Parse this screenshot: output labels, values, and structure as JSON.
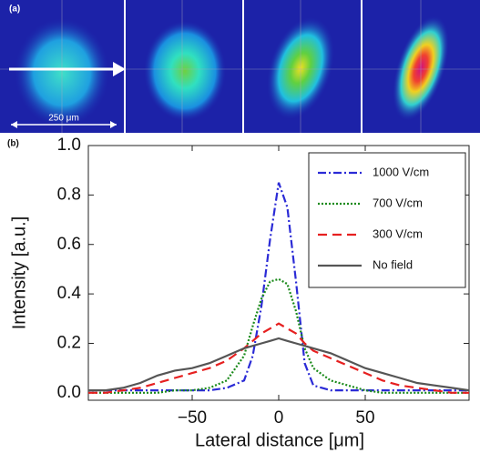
{
  "panels": {
    "panel_a": "(a)",
    "panel_b": "(b)",
    "scale_bar": "250 μm"
  },
  "chart_data": {
    "type": "line",
    "xlabel": "Lateral distance [μm]",
    "ylabel": "Intensity  [a.u.]",
    "xlim": [
      -110,
      110
    ],
    "ylim": [
      -0.03,
      1.0
    ],
    "xticks": [
      {
        "value": -50,
        "label": "−50"
      },
      0,
      50
    ],
    "yticks": [
      {
        "value": 0,
        "label": "0.0"
      },
      0.2,
      0.4,
      0.6,
      0.8,
      {
        "value": 1,
        "label": "1.0"
      }
    ],
    "legend_position": "upper right",
    "x": [
      -110,
      -100,
      -90,
      -80,
      -70,
      -60,
      -50,
      -40,
      -30,
      -20,
      -15,
      -10,
      -5,
      0,
      5,
      10,
      15,
      20,
      30,
      40,
      50,
      60,
      70,
      80,
      90,
      100,
      110
    ],
    "series": [
      {
        "name": "1000 V/cm",
        "color": "#2b2bd6",
        "dash": "9,3,2,3",
        "values": [
          0.01,
          0.01,
          0.01,
          0.01,
          0.01,
          0.01,
          0.01,
          0.01,
          0.02,
          0.05,
          0.15,
          0.35,
          0.62,
          0.85,
          0.75,
          0.45,
          0.12,
          0.03,
          0.01,
          0.01,
          0.01,
          0.01,
          0.01,
          0.01,
          0.01,
          0.01,
          0.01
        ]
      },
      {
        "name": "700 V/cm",
        "color": "#1a8a1a",
        "dash": "2,2",
        "values": [
          0,
          0,
          0,
          0,
          0,
          0.01,
          0.01,
          0.02,
          0.05,
          0.15,
          0.27,
          0.38,
          0.45,
          0.46,
          0.44,
          0.33,
          0.18,
          0.1,
          0.05,
          0.03,
          0.01,
          0,
          0,
          0,
          0,
          0,
          0
        ]
      },
      {
        "name": "300 V/cm",
        "color": "#e62020",
        "dash": "10,6",
        "values": [
          0,
          0,
          0.01,
          0.02,
          0.04,
          0.06,
          0.08,
          0.1,
          0.13,
          0.18,
          0.21,
          0.24,
          0.26,
          0.28,
          0.26,
          0.24,
          0.2,
          0.17,
          0.14,
          0.11,
          0.08,
          0.05,
          0.03,
          0.02,
          0.01,
          0,
          0
        ]
      },
      {
        "name": "No field",
        "color": "#555555",
        "dash": "",
        "values": [
          0.01,
          0.01,
          0.02,
          0.04,
          0.07,
          0.09,
          0.1,
          0.12,
          0.15,
          0.18,
          0.19,
          0.2,
          0.21,
          0.22,
          0.21,
          0.2,
          0.19,
          0.18,
          0.16,
          0.13,
          0.1,
          0.08,
          0.06,
          0.04,
          0.03,
          0.02,
          0.01
        ]
      }
    ]
  }
}
